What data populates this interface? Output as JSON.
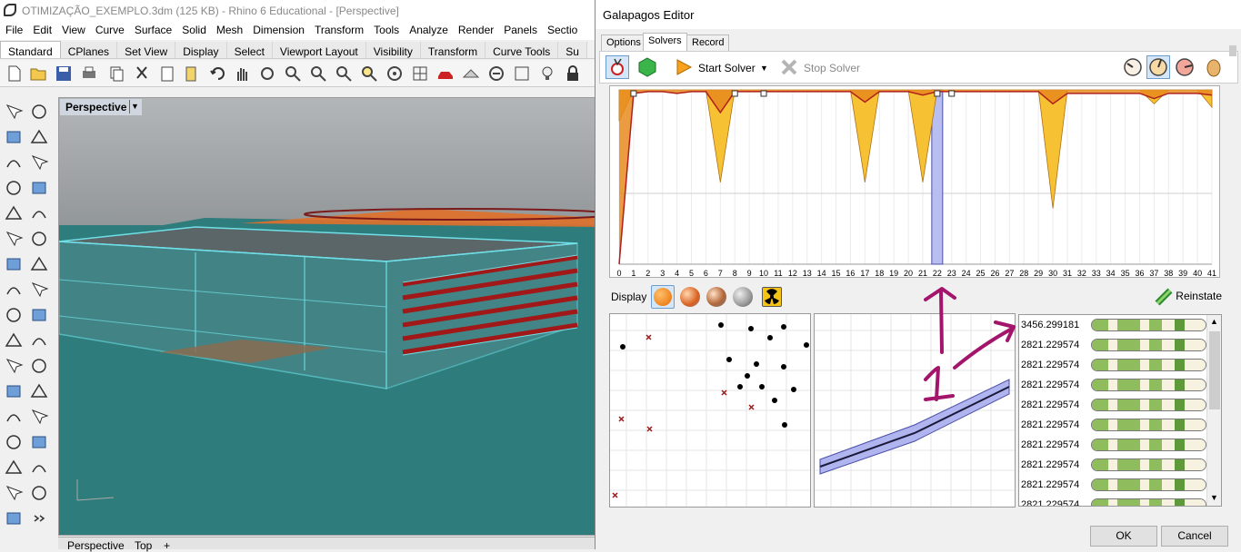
{
  "rhino": {
    "title": "OTIMIZAÇÃO_EXEMPLO.3dm (125 KB) - Rhino 6 Educational - [Perspective]",
    "menu": [
      "File",
      "Edit",
      "View",
      "Curve",
      "Surface",
      "Solid",
      "Mesh",
      "Dimension",
      "Transform",
      "Tools",
      "Analyze",
      "Render",
      "Panels",
      "Sectio"
    ],
    "tabs": [
      "Standard",
      "CPlanes",
      "Set View",
      "Display",
      "Select",
      "Viewport Layout",
      "Visibility",
      "Transform",
      "Curve Tools",
      "Su"
    ],
    "active_tab": "Standard",
    "viewport_label": "Perspective",
    "viewport_tabs": [
      "Perspective",
      "Top",
      "+"
    ]
  },
  "galapagos": {
    "title": "Galapagos Editor",
    "tabs": [
      "Options",
      "Solvers",
      "Record"
    ],
    "active_tab": "Solvers",
    "start_solver": "Start Solver",
    "stop_solver": "Stop Solver",
    "display_label": "Display",
    "reinstate_label": "Reinstate",
    "ok_label": "OK",
    "cancel_label": "Cancel",
    "fitness_list": [
      "3456.299181",
      "2821.229574",
      "2821.229574",
      "2821.229574",
      "2821.229574",
      "2821.229574",
      "2821.229574",
      "2821.229574",
      "2821.229574",
      "2821.229574"
    ]
  },
  "chart_data": {
    "type": "area",
    "title": "",
    "xlabel": "",
    "ylabel": "",
    "x": [
      0,
      1,
      2,
      3,
      4,
      5,
      6,
      7,
      8,
      9,
      10,
      11,
      12,
      13,
      14,
      15,
      16,
      17,
      18,
      19,
      20,
      21,
      22,
      23,
      24,
      25,
      26,
      27,
      28,
      29,
      30,
      31,
      32,
      33,
      34,
      35,
      36,
      37,
      38,
      39,
      40,
      41
    ],
    "tick_labels": [
      "0",
      "1",
      "2",
      "3",
      "4",
      "5",
      "6",
      "7",
      "8",
      "9",
      "10",
      "11",
      "12",
      "13",
      "14",
      "15",
      "16",
      "17",
      "18",
      "19",
      "20",
      "21",
      "22",
      "23",
      "24",
      "25",
      "26",
      "27",
      "28",
      "29",
      "30",
      "31",
      "32",
      "33",
      "34",
      "35",
      "36",
      "37",
      "38",
      "39",
      "40",
      "41"
    ],
    "series": [
      {
        "values": [
          0.82,
          1.0,
          1.0,
          1.0,
          1.0,
          1.0,
          1.0,
          0.47,
          1.0,
          1.0,
          1.0,
          1.0,
          1.0,
          1.0,
          1.0,
          1.0,
          1.0,
          0.47,
          1.0,
          1.0,
          1.0,
          0.47,
          1.0,
          1.0,
          1.0,
          1.0,
          1.0,
          1.0,
          1.0,
          1.0,
          0.32,
          1.0,
          1.0,
          1.0,
          1.0,
          1.0,
          1.0,
          0.92,
          1.0,
          1.0,
          1.0,
          0.9
        ]
      },
      {
        "values": [
          0.0,
          0.98,
          0.99,
          0.99,
          0.98,
          0.99,
          0.99,
          0.87,
          0.99,
          0.99,
          0.99,
          0.99,
          0.99,
          0.99,
          0.99,
          0.99,
          0.99,
          0.93,
          0.99,
          0.99,
          0.99,
          0.97,
          0.99,
          0.99,
          0.99,
          0.99,
          0.99,
          0.99,
          0.99,
          0.99,
          0.92,
          0.98,
          0.98,
          0.98,
          0.98,
          0.98,
          0.98,
          0.95,
          0.98,
          0.98,
          0.98,
          0.97
        ]
      }
    ],
    "highlight_generation": 22,
    "colors": {
      "fill": "#f6c233",
      "fill_dark": "#e8891e",
      "line": "#b0201d",
      "highlight": "#b8bff0"
    }
  }
}
